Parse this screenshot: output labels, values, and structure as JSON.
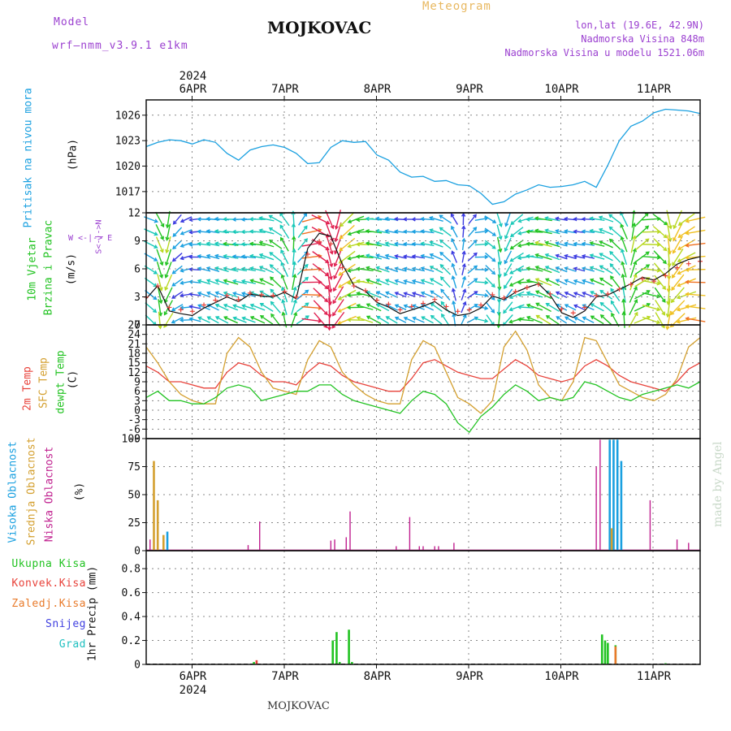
{
  "header": {
    "model_label": "Model",
    "model_name": "wrf–nmm_v3.9.1  e1km",
    "title": "MOJKOVAC",
    "meteogram": "Meteogram",
    "lonlat": "lon,lat (19.6E, 42.9N)",
    "altitude": "Nadmorska Visina 848m",
    "model_altitude": "Nadmorska Visina u modelu 1521.06m",
    "footer_station": "MOJKOVAC",
    "watermark": "made by Angel"
  },
  "colors": {
    "pressure": "#1aa0e0",
    "temp2m": "#e8423a",
    "sfc": "#d4a030",
    "dewpt": "#22c322",
    "high_cloud": "#1aa0e0",
    "mid_cloud": "#d4a030",
    "low_cloud": "#c0208f",
    "precip_total": "#22c322",
    "precip_conv": "#e8423a",
    "precip_freeze": "#e87a2a",
    "snow": "#4040e0",
    "hail": "#20c0c0",
    "wind_label": "#22c322",
    "dir_label": "#9b40d0"
  },
  "time_axis": {
    "year": "2024",
    "days": [
      "6APR",
      "7APR",
      "8APR",
      "9APR",
      "10APR",
      "11APR"
    ],
    "hours_total": 144
  },
  "chart_data": [
    {
      "id": "pressure",
      "type": "line",
      "ylabel_main": "Pritisak na nivou mora",
      "ylabel_unit": "(hPa)",
      "yticks": [
        "1017",
        "1020",
        "1023",
        "1026"
      ],
      "ylim": [
        1014.5,
        1027.8
      ],
      "x_hours": [
        0,
        3,
        6,
        9,
        12,
        15,
        18,
        21,
        24,
        27,
        30,
        33,
        36,
        39,
        42,
        45,
        48,
        51,
        54,
        57,
        60,
        63,
        66,
        69,
        72,
        75,
        78,
        81,
        84,
        87,
        90,
        93,
        96,
        99,
        102,
        105,
        108,
        111,
        114,
        117,
        120,
        123,
        126,
        129,
        132,
        135,
        138,
        141,
        144
      ],
      "values": [
        1022.3,
        1022.8,
        1023.1,
        1023.0,
        1022.6,
        1023.1,
        1022.8,
        1021.5,
        1020.7,
        1021.9,
        1022.3,
        1022.5,
        1022.2,
        1021.5,
        1020.3,
        1020.4,
        1022.2,
        1023.0,
        1022.8,
        1022.9,
        1021.3,
        1020.7,
        1019.3,
        1018.7,
        1018.8,
        1018.2,
        1018.3,
        1017.8,
        1017.7,
        1016.8,
        1015.5,
        1015.8,
        1016.7,
        1017.2,
        1017.8,
        1017.5,
        1017.6,
        1017.8,
        1018.2,
        1017.5,
        1020.1,
        1023.0,
        1024.7,
        1025.3,
        1026.3,
        1026.7,
        1026.6,
        1026.5,
        1026.2
      ]
    },
    {
      "id": "wind",
      "type": "line",
      "ylabel_main": "10m Vjetar",
      "ylabel_sub": "Brzina i Pravac",
      "ylabel_unit": "(m/s)",
      "compass": "W <-|-> E",
      "compass2": "S<-|->N",
      "yticks": [
        "0",
        "3",
        "6",
        "9",
        "12"
      ],
      "ylim": [
        0,
        12
      ],
      "x_hours": [
        0,
        3,
        6,
        9,
        12,
        15,
        18,
        21,
        24,
        27,
        30,
        33,
        36,
        39,
        42,
        45,
        48,
        51,
        54,
        57,
        60,
        63,
        66,
        69,
        72,
        75,
        78,
        81,
        84,
        87,
        90,
        93,
        96,
        99,
        102,
        105,
        108,
        111,
        114,
        117,
        120,
        123,
        126,
        129,
        132,
        135,
        138,
        141,
        144
      ],
      "speed": [
        2.8,
        4.2,
        1.5,
        1.2,
        1.0,
        1.8,
        2.4,
        3.0,
        2.5,
        3.3,
        3.1,
        3.0,
        3.5,
        2.8,
        8.2,
        9.8,
        9.5,
        6.5,
        4.2,
        3.6,
        2.4,
        1.9,
        1.2,
        1.6,
        2.0,
        2.5,
        1.6,
        1.0,
        1.2,
        1.8,
        3.1,
        2.7,
        3.5,
        4.0,
        4.4,
        3.2,
        1.3,
        0.8,
        1.5,
        3.0,
        3.2,
        3.8,
        4.4,
        5.1,
        4.8,
        5.5,
        6.5,
        7.0,
        7.3
      ]
    },
    {
      "id": "temperature",
      "type": "line",
      "ylabel_t2m": "2m Temp",
      "ylabel_sfc": "SFC Temp",
      "ylabel_dew": "dewpt Temp",
      "ylabel_unit": "(C)",
      "yticks": [
        "-9",
        "-6",
        "-3",
        "0",
        "3",
        "6",
        "9",
        "12",
        "15",
        "18",
        "21",
        "24",
        "27"
      ],
      "ylim": [
        -9,
        27
      ],
      "x_hours": [
        0,
        3,
        6,
        9,
        12,
        15,
        18,
        21,
        24,
        27,
        30,
        33,
        36,
        39,
        42,
        45,
        48,
        51,
        54,
        57,
        60,
        63,
        66,
        69,
        72,
        75,
        78,
        81,
        84,
        87,
        90,
        93,
        96,
        99,
        102,
        105,
        108,
        111,
        114,
        117,
        120,
        123,
        126,
        129,
        132,
        135,
        138,
        141,
        144
      ],
      "series": [
        {
          "name": "2m Temp",
          "values": [
            14,
            12,
            9,
            9,
            8,
            7,
            7,
            12,
            15,
            14,
            11,
            9,
            9,
            8,
            12,
            15,
            14,
            11,
            9,
            8,
            7,
            6,
            6,
            10,
            15,
            16,
            14,
            12,
            11,
            10,
            10,
            13,
            16,
            14,
            11,
            10,
            9,
            10,
            14,
            16,
            14,
            11,
            9,
            8,
            7,
            6,
            9,
            13,
            15
          ]
        },
        {
          "name": "SFC Temp",
          "values": [
            20,
            15,
            9,
            5,
            3,
            2,
            2,
            18,
            23,
            20,
            12,
            7,
            6,
            5,
            16,
            22,
            20,
            12,
            8,
            5,
            3,
            2,
            2,
            16,
            22,
            20,
            12,
            4,
            2,
            -1,
            3,
            20,
            25,
            19,
            8,
            4,
            3,
            9,
            23,
            22,
            15,
            8,
            6,
            4,
            3,
            5,
            10,
            20,
            23
          ]
        },
        {
          "name": "dewpt Temp",
          "values": [
            4,
            6,
            3,
            3,
            2,
            2,
            4,
            7,
            8,
            7,
            3,
            4,
            5,
            6,
            6,
            8,
            8,
            5,
            3,
            2,
            1,
            0,
            -1,
            3,
            6,
            5,
            2,
            -4,
            -7,
            -2,
            1,
            5,
            8,
            6,
            3,
            4,
            3,
            4,
            9,
            8,
            6,
            4,
            3,
            5,
            6,
            7,
            8,
            7,
            9
          ]
        }
      ]
    },
    {
      "id": "clouds",
      "type": "bar",
      "ylabel_high": "Visoka Oblacnost",
      "ylabel_mid": "Srednja Oblacnost",
      "ylabel_low": "Niska Oblacnost",
      "ylabel_unit": "(%)",
      "yticks": [
        "0",
        "25",
        "50",
        "75",
        "100"
      ],
      "ylim": [
        0,
        100
      ],
      "bars": [
        {
          "h": 1.0,
          "layer": "low",
          "v": 10
        },
        {
          "h": 2.0,
          "layer": "mid",
          "v": 80
        },
        {
          "h": 3.0,
          "layer": "mid",
          "v": 45
        },
        {
          "h": 4.5,
          "layer": "mid",
          "v": 14
        },
        {
          "h": 5.5,
          "layer": "high",
          "v": 17
        },
        {
          "h": 26.5,
          "layer": "low",
          "v": 5
        },
        {
          "h": 29.5,
          "layer": "low",
          "v": 26
        },
        {
          "h": 48.0,
          "layer": "low",
          "v": 9
        },
        {
          "h": 49.0,
          "layer": "low",
          "v": 10
        },
        {
          "h": 52.0,
          "layer": "low",
          "v": 12
        },
        {
          "h": 53.0,
          "layer": "low",
          "v": 35
        },
        {
          "h": 65.0,
          "layer": "low",
          "v": 4
        },
        {
          "h": 68.5,
          "layer": "low",
          "v": 30
        },
        {
          "h": 71.0,
          "layer": "low",
          "v": 4
        },
        {
          "h": 72.0,
          "layer": "low",
          "v": 4
        },
        {
          "h": 75.0,
          "layer": "low",
          "v": 4
        },
        {
          "h": 76.0,
          "layer": "low",
          "v": 4
        },
        {
          "h": 80.0,
          "layer": "low",
          "v": 7
        },
        {
          "h": 117.0,
          "layer": "low",
          "v": 75
        },
        {
          "h": 118.0,
          "layer": "low",
          "v": 99
        },
        {
          "h": 120.5,
          "layer": "high",
          "v": 99
        },
        {
          "h": 121.5,
          "layer": "high",
          "v": 99
        },
        {
          "h": 122.5,
          "layer": "high",
          "v": 99
        },
        {
          "h": 123.5,
          "layer": "high",
          "v": 80
        },
        {
          "h": 121.0,
          "layer": "mid",
          "v": 20
        },
        {
          "h": 131.0,
          "layer": "low",
          "v": 45
        },
        {
          "h": 138.0,
          "layer": "low",
          "v": 10
        },
        {
          "h": 141.0,
          "layer": "low",
          "v": 7
        }
      ]
    },
    {
      "id": "precip",
      "type": "bar",
      "legend": [
        "Ukupna Kisa",
        "Konvek.Kisa",
        "Zaledj.Kisa",
        "Snijeg",
        "Grad"
      ],
      "ylabel_unit": "1hr Precip (mm)",
      "yticks": [
        "0",
        "0.2",
        "0.4",
        "0.6",
        "0.8"
      ],
      "ylim": [
        0,
        0.95
      ],
      "bars": [
        {
          "h": 28.0,
          "kind": "total",
          "v": 0.02
        },
        {
          "h": 28.7,
          "kind": "conv",
          "v": 0.035
        },
        {
          "h": 48.5,
          "kind": "total",
          "v": 0.2
        },
        {
          "h": 49.5,
          "kind": "total",
          "v": 0.27
        },
        {
          "h": 50.3,
          "kind": "total",
          "v": 0.02
        },
        {
          "h": 52.7,
          "kind": "total",
          "v": 0.29
        },
        {
          "h": 53.5,
          "kind": "total",
          "v": 0.02
        },
        {
          "h": 118.5,
          "kind": "total",
          "v": 0.25
        },
        {
          "h": 119.3,
          "kind": "total",
          "v": 0.2
        },
        {
          "h": 120.0,
          "kind": "total",
          "v": 0.18
        },
        {
          "h": 122.0,
          "kind": "total",
          "v": 0.16
        },
        {
          "h": 122.0,
          "kind": "freeze",
          "v": 0.15
        },
        {
          "h": 135.0,
          "kind": "total",
          "v": 0.01
        }
      ]
    }
  ]
}
